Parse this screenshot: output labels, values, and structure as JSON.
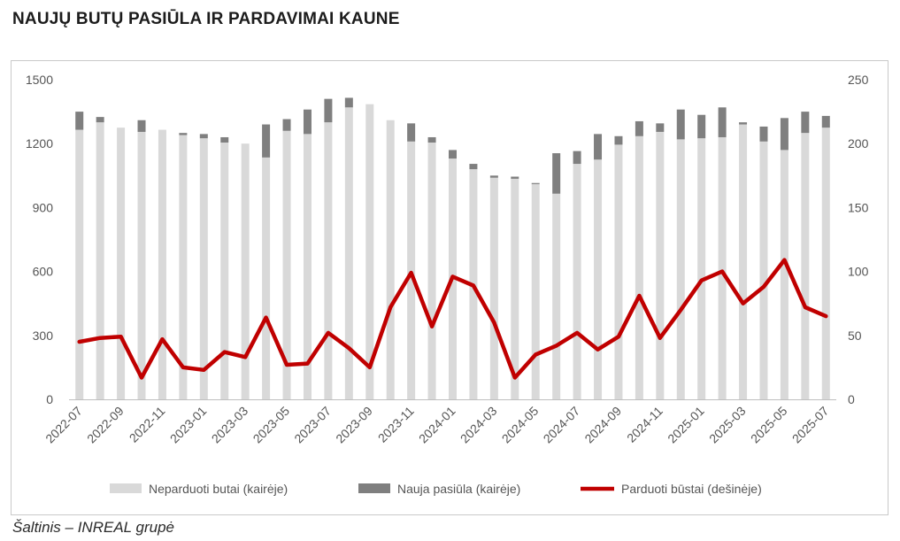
{
  "title": "NAUJŲ BUTŲ PASIŪLA IR PARDAVIMAI KAUNE",
  "source": "Šaltinis – INREAL grupė",
  "colors": {
    "unsold": "#d9d9d9",
    "new_supply": "#7f7f7f",
    "sold": "#c00000",
    "axis_text": "#555555",
    "frame": "#c9c9c9"
  },
  "chart_data": {
    "type": "bar",
    "categories": [
      "2022-07",
      "2022-08",
      "2022-09",
      "2022-10",
      "2022-11",
      "2022-12",
      "2023-01",
      "2023-02",
      "2023-03",
      "2023-04",
      "2023-05",
      "2023-06",
      "2023-07",
      "2023-08",
      "2023-09",
      "2023-10",
      "2023-11",
      "2023-12",
      "2024-01",
      "2024-02",
      "2024-03",
      "2024-04",
      "2024-05",
      "2024-06",
      "2024-07",
      "2024-08",
      "2024-09",
      "2024-10",
      "2024-11",
      "2024-12",
      "2025-01",
      "2025-02",
      "2025-03",
      "2025-04",
      "2025-05",
      "2025-06",
      "2025-07"
    ],
    "x_tick_labels": [
      "2022-07",
      "2022-09",
      "2022-11",
      "2023-01",
      "2023-03",
      "2023-05",
      "2023-07",
      "2023-09",
      "2023-11",
      "2024-01",
      "2024-03",
      "2024-05",
      "2024-07",
      "2024-09",
      "2024-11",
      "2025-01",
      "2025-03",
      "2025-05",
      "2025-07"
    ],
    "left_axis": {
      "ylim": [
        0,
        1500
      ],
      "ticks": [
        0,
        300,
        600,
        900,
        1200,
        1500
      ]
    },
    "right_axis": {
      "ylim": [
        0,
        250
      ],
      "ticks": [
        0,
        50,
        100,
        150,
        200,
        250
      ]
    },
    "series": [
      {
        "name": "Neparduoti butai (kairėje)",
        "type": "bar",
        "axis": "left",
        "stack": "a",
        "values": [
          1265,
          1300,
          1275,
          1255,
          1265,
          1240,
          1225,
          1205,
          1200,
          1135,
          1260,
          1245,
          1300,
          1370,
          1385,
          1310,
          1210,
          1205,
          1130,
          1080,
          1040,
          1035,
          1010,
          965,
          1105,
          1125,
          1195,
          1235,
          1255,
          1220,
          1225,
          1230,
          1290,
          1210,
          1170,
          1250,
          1275
        ]
      },
      {
        "name": "Nauja pasiūla (kairėje)",
        "type": "bar",
        "axis": "left",
        "stack": "a",
        "values": [
          85,
          25,
          0,
          55,
          0,
          10,
          20,
          25,
          0,
          155,
          55,
          115,
          110,
          45,
          0,
          0,
          85,
          25,
          40,
          25,
          10,
          10,
          5,
          190,
          60,
          120,
          40,
          70,
          40,
          140,
          110,
          140,
          10,
          70,
          150,
          100,
          55
        ]
      },
      {
        "name": "Parduoti būstai (dešinėje)",
        "type": "line",
        "axis": "right",
        "values": [
          45,
          48,
          49,
          17,
          47,
          25,
          23,
          37,
          33,
          64,
          27,
          28,
          52,
          40,
          25,
          72,
          99,
          57,
          96,
          89,
          60,
          17,
          35,
          42,
          52,
          39,
          49,
          81,
          48,
          70,
          93,
          100,
          75,
          88,
          109,
          72,
          65
        ]
      }
    ],
    "legend_position": "bottom",
    "grid": false
  }
}
